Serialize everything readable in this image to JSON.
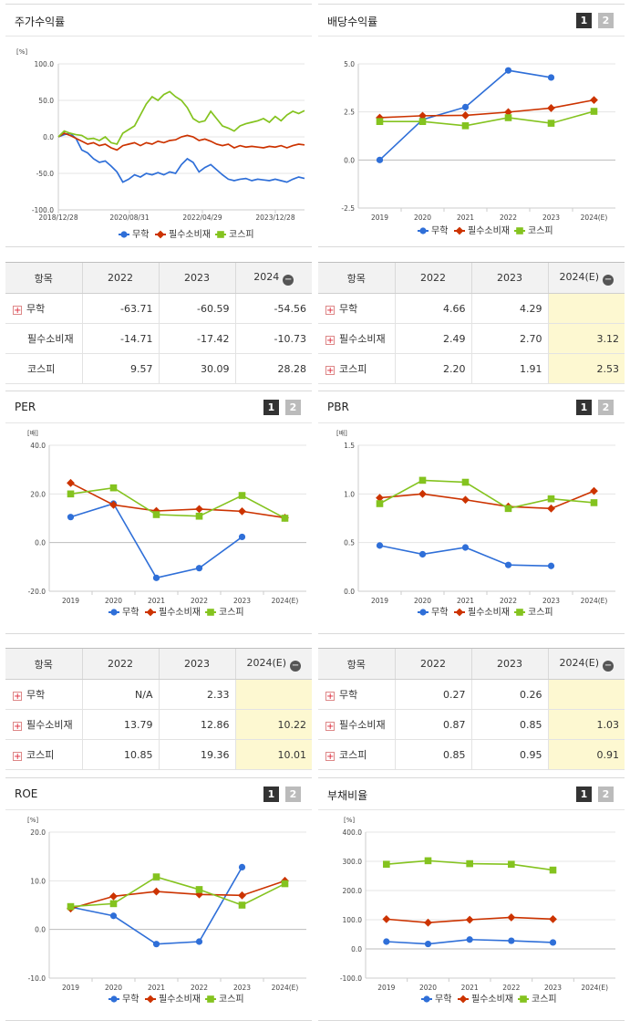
{
  "colors": {
    "muhak": "#2f6fd8",
    "staples": "#cc3300",
    "kospi": "#84c31f"
  },
  "legend": [
    "무학",
    "필수소비재",
    "코스피"
  ],
  "pager": [
    "1",
    "2"
  ],
  "panels": {
    "stock": {
      "title": "주가수익률"
    },
    "dividend": {
      "title": "배당수익률"
    },
    "per": {
      "title": "PER"
    },
    "pbr": {
      "title": "PBR"
    },
    "roe": {
      "title": "ROE"
    },
    "debt": {
      "title": "부채비율"
    }
  },
  "chart_data": [
    {
      "id": "stock",
      "type": "line",
      "title": "주가수익률",
      "ylabel": "[%]",
      "ylim": [
        -100,
        100
      ],
      "yticks": [
        "100.0",
        "50.0",
        "0.0",
        "-50.0",
        "-100.0"
      ],
      "xticks": [
        "2018/12/28",
        "2020/08/31",
        "2022/04/29",
        "2023/12/28"
      ],
      "series": [
        {
          "name": "무학",
          "values": [
            0,
            3,
            5,
            -2,
            -18,
            -22,
            -30,
            -35,
            -33,
            -40,
            -48,
            -62,
            -58,
            -52,
            -55,
            -50,
            -52,
            -49,
            -52,
            -48,
            -50,
            -38,
            -30,
            -35,
            -48,
            -42,
            -38,
            -45,
            -52,
            -58,
            -60,
            -58,
            -57,
            -60,
            -58,
            -59,
            -60,
            -58,
            -60,
            -62,
            -58,
            -55,
            -57
          ]
        },
        {
          "name": "필수소비재",
          "values": [
            0,
            5,
            2,
            -2,
            -6,
            -10,
            -8,
            -12,
            -10,
            -15,
            -18,
            -12,
            -10,
            -8,
            -12,
            -8,
            -10,
            -6,
            -8,
            -5,
            -4,
            0,
            2,
            0,
            -5,
            -3,
            -6,
            -10,
            -12,
            -10,
            -15,
            -12,
            -14,
            -13,
            -14,
            -15,
            -13,
            -14,
            -12,
            -15,
            -12,
            -10,
            -11
          ]
        },
        {
          "name": "코스피",
          "values": [
            0,
            8,
            5,
            3,
            2,
            -3,
            -2,
            -5,
            0,
            -8,
            -10,
            5,
            10,
            15,
            30,
            45,
            55,
            50,
            58,
            62,
            55,
            50,
            40,
            25,
            20,
            22,
            35,
            25,
            15,
            12,
            8,
            15,
            18,
            20,
            22,
            25,
            20,
            28,
            22,
            30,
            35,
            32,
            36
          ]
        }
      ]
    },
    {
      "id": "dividend",
      "type": "line",
      "title": "배당수익률",
      "categories": [
        "2019",
        "2020",
        "2021",
        "2022",
        "2023",
        "2024(E)"
      ],
      "ylim": [
        -2.5,
        5.0
      ],
      "yticks": [
        "5.0",
        "2.5",
        "0.0",
        "-2.5"
      ],
      "series": [
        {
          "name": "무학",
          "values": [
            0.0,
            2.1,
            2.75,
            4.66,
            4.29,
            null
          ]
        },
        {
          "name": "필수소비재",
          "values": [
            2.2,
            2.3,
            2.32,
            2.49,
            2.7,
            3.12
          ]
        },
        {
          "name": "코스피",
          "values": [
            2.0,
            2.0,
            1.78,
            2.2,
            1.91,
            2.53
          ]
        }
      ]
    },
    {
      "id": "per",
      "type": "line",
      "title": "PER",
      "ylabel": "[배]",
      "categories": [
        "2019",
        "2020",
        "2021",
        "2022",
        "2023",
        "2024(E)"
      ],
      "ylim": [
        -20,
        40
      ],
      "yticks": [
        "40.0",
        "20.0",
        "0.0",
        "-20.0"
      ],
      "series": [
        {
          "name": "무학",
          "values": [
            10.5,
            16.0,
            -14.5,
            -10.5,
            2.33,
            null
          ]
        },
        {
          "name": "필수소비재",
          "values": [
            24.5,
            15.5,
            13.0,
            13.79,
            12.86,
            10.22
          ]
        },
        {
          "name": "코스피",
          "values": [
            20.0,
            22.5,
            11.5,
            10.85,
            19.36,
            10.01
          ]
        }
      ]
    },
    {
      "id": "pbr",
      "type": "line",
      "title": "PBR",
      "ylabel": "[배]",
      "categories": [
        "2019",
        "2020",
        "2021",
        "2022",
        "2023",
        "2024(E)"
      ],
      "ylim": [
        0.0,
        1.5
      ],
      "yticks": [
        "1.5",
        "1.0",
        "0.5",
        "0.0"
      ],
      "series": [
        {
          "name": "무학",
          "values": [
            0.47,
            0.38,
            0.45,
            0.27,
            0.26,
            null
          ]
        },
        {
          "name": "필수소비재",
          "values": [
            0.96,
            1.0,
            0.94,
            0.87,
            0.85,
            1.03
          ]
        },
        {
          "name": "코스피",
          "values": [
            0.9,
            1.14,
            1.12,
            0.85,
            0.95,
            0.91
          ]
        }
      ]
    },
    {
      "id": "roe",
      "type": "line",
      "title": "ROE",
      "ylabel": "[%]",
      "categories": [
        "2019",
        "2020",
        "2021",
        "2022",
        "2023",
        "2024(E)"
      ],
      "ylim": [
        -10,
        20
      ],
      "yticks": [
        "20.0",
        "10.0",
        "0.0",
        "-10.0"
      ],
      "series": [
        {
          "name": "무학",
          "values": [
            4.6,
            2.8,
            -3.0,
            -2.5,
            12.8,
            null
          ]
        },
        {
          "name": "필수소비재",
          "values": [
            4.3,
            6.8,
            7.8,
            7.2,
            7.0,
            10.0
          ]
        },
        {
          "name": "코스피",
          "values": [
            4.7,
            5.3,
            10.8,
            8.2,
            5.0,
            9.4
          ]
        }
      ]
    },
    {
      "id": "debt",
      "type": "line",
      "title": "부채비율",
      "ylabel": "[%]",
      "categories": [
        "2019",
        "2020",
        "2021",
        "2022",
        "2023",
        "2024(E)"
      ],
      "ylim": [
        -100,
        400
      ],
      "yticks": [
        "400.0",
        "300.0",
        "200.0",
        "100.0",
        "0.0",
        "-100.0"
      ],
      "series": [
        {
          "name": "무학",
          "values": [
            25,
            17,
            32,
            28,
            22,
            null
          ]
        },
        {
          "name": "필수소비재",
          "values": [
            102,
            90,
            100,
            108,
            102,
            null
          ]
        },
        {
          "name": "코스피",
          "values": [
            290,
            302,
            292,
            290,
            270,
            null
          ]
        }
      ]
    }
  ],
  "tables": {
    "stock": {
      "headers": [
        "항목",
        "2022",
        "2023",
        "2024"
      ],
      "rows": [
        {
          "label": "무학",
          "plus": true,
          "v": [
            "-63.71",
            "-60.59",
            "-54.56"
          ]
        },
        {
          "label": "필수소비재",
          "plus": false,
          "v": [
            "-14.71",
            "-17.42",
            "-10.73"
          ]
        },
        {
          "label": "코스피",
          "plus": false,
          "v": [
            "9.57",
            "30.09",
            "28.28"
          ]
        }
      ]
    },
    "dividend": {
      "headers": [
        "항목",
        "2022",
        "2023",
        "2024(E)"
      ],
      "rows": [
        {
          "label": "무학",
          "plus": true,
          "v": [
            "4.66",
            "4.29",
            ""
          ]
        },
        {
          "label": "필수소비재",
          "plus": true,
          "v": [
            "2.49",
            "2.70",
            "3.12"
          ]
        },
        {
          "label": "코스피",
          "plus": true,
          "v": [
            "2.20",
            "1.91",
            "2.53"
          ]
        }
      ]
    },
    "per": {
      "headers": [
        "항목",
        "2022",
        "2023",
        "2024(E)"
      ],
      "rows": [
        {
          "label": "무학",
          "plus": true,
          "v": [
            "N/A",
            "2.33",
            ""
          ]
        },
        {
          "label": "필수소비재",
          "plus": true,
          "v": [
            "13.79",
            "12.86",
            "10.22"
          ]
        },
        {
          "label": "코스피",
          "plus": true,
          "v": [
            "10.85",
            "19.36",
            "10.01"
          ]
        }
      ]
    },
    "pbr": {
      "headers": [
        "항목",
        "2022",
        "2023",
        "2024(E)"
      ],
      "rows": [
        {
          "label": "무학",
          "plus": true,
          "v": [
            "0.27",
            "0.26",
            ""
          ]
        },
        {
          "label": "필수소비재",
          "plus": true,
          "v": [
            "0.87",
            "0.85",
            "1.03"
          ]
        },
        {
          "label": "코스피",
          "plus": true,
          "v": [
            "0.85",
            "0.95",
            "0.91"
          ]
        }
      ]
    }
  }
}
